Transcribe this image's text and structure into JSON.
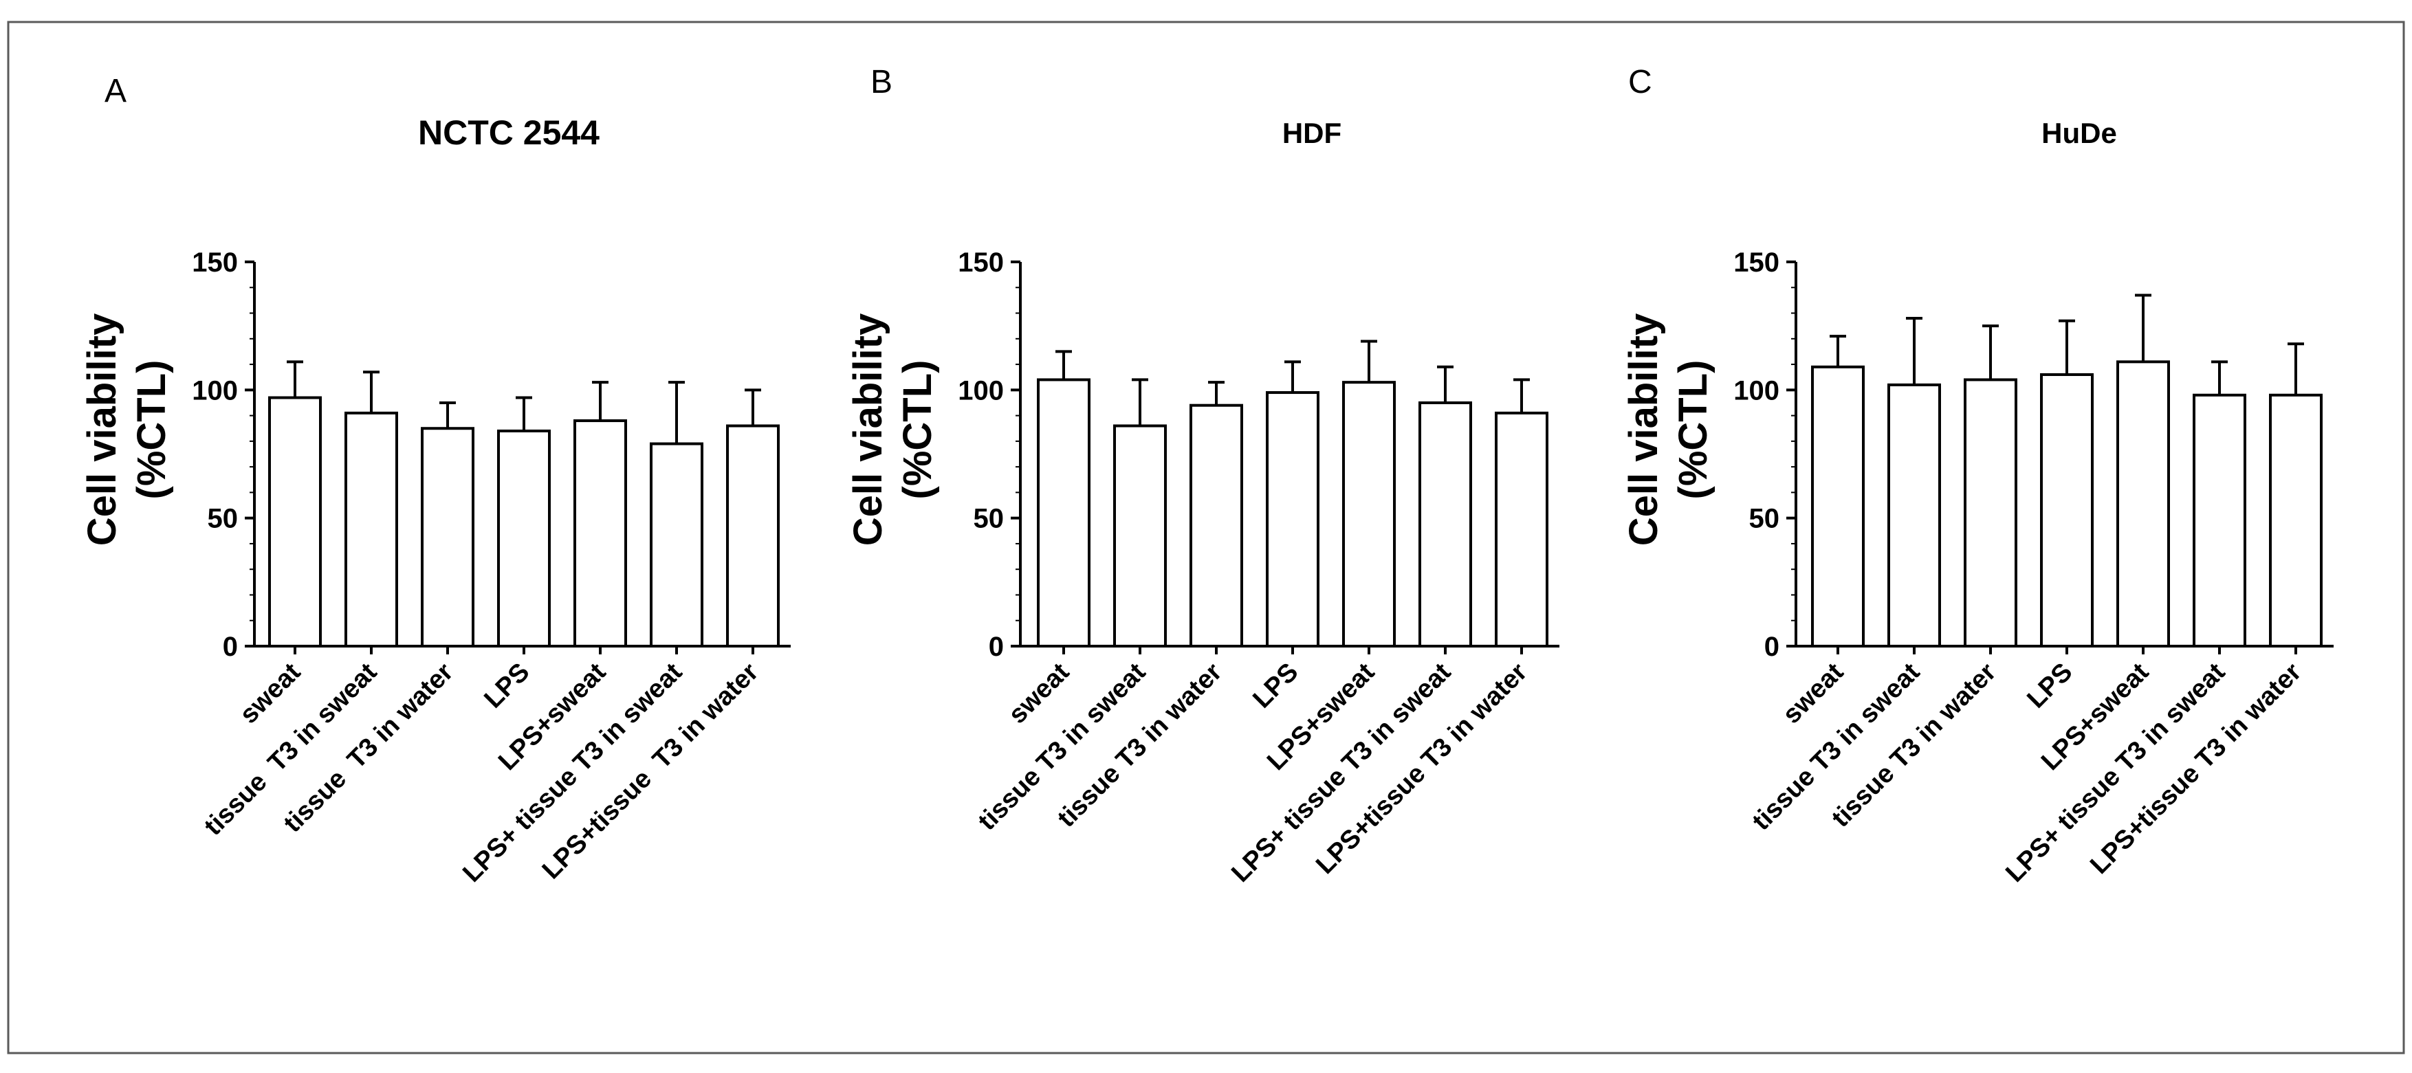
{
  "figure": {
    "border_color": "#5a5a5a",
    "bar_fill": "#ffffff",
    "stroke_color": "#000000"
  },
  "chart_data": [
    {
      "type": "bar",
      "panel": "A",
      "title": "NCTC 2544",
      "ylabel_line1": "Cell viability",
      "ylabel_line2": "(%CTL)",
      "xlabel": "",
      "ylim": [
        0,
        150
      ],
      "yticks": [
        0,
        50,
        100,
        150
      ],
      "categories": [
        "sweat",
        "tissue  T3 in sweat",
        "tissue  T3 in water",
        "LPS",
        "LPS+sweat",
        "LPS+ tissue T3 in sweat",
        "LPS+tissue  T3 in water"
      ],
      "values": [
        97,
        91,
        85,
        84,
        88,
        79,
        86
      ],
      "errors": [
        14,
        16,
        10,
        13,
        15,
        24,
        14
      ]
    },
    {
      "type": "bar",
      "panel": "B",
      "title": "HDF",
      "ylabel_line1": "Cell viability",
      "ylabel_line2": "(%CTL)",
      "xlabel": "",
      "ylim": [
        0,
        150
      ],
      "yticks": [
        0,
        50,
        100,
        150
      ],
      "categories": [
        "sweat",
        "tissue T3 in sweat",
        "tissue T3 in water",
        "LPS",
        "LPS+sweat",
        "LPS+ tissue T3 in sweat",
        "LPS+tissue T3 in water"
      ],
      "values": [
        104,
        86,
        94,
        99,
        103,
        95,
        91
      ],
      "errors": [
        11,
        18,
        9,
        12,
        16,
        14,
        13
      ]
    },
    {
      "type": "bar",
      "panel": "C",
      "title": "HuDe",
      "ylabel_line1": "Cell viability",
      "ylabel_line2": "(%CTL)",
      "xlabel": "",
      "ylim": [
        0,
        150
      ],
      "yticks": [
        0,
        50,
        100,
        150
      ],
      "categories": [
        "sweat",
        "tissue T3 in sweat",
        "tissue T3 in water",
        "LPS",
        "LPS+sweat",
        "LPS+ tissue T3 in sweat",
        "LPS+tissue T3 in water"
      ],
      "values": [
        109,
        102,
        104,
        106,
        111,
        98,
        98
      ],
      "errors": [
        12,
        26,
        21,
        21,
        26,
        13,
        20
      ]
    }
  ]
}
